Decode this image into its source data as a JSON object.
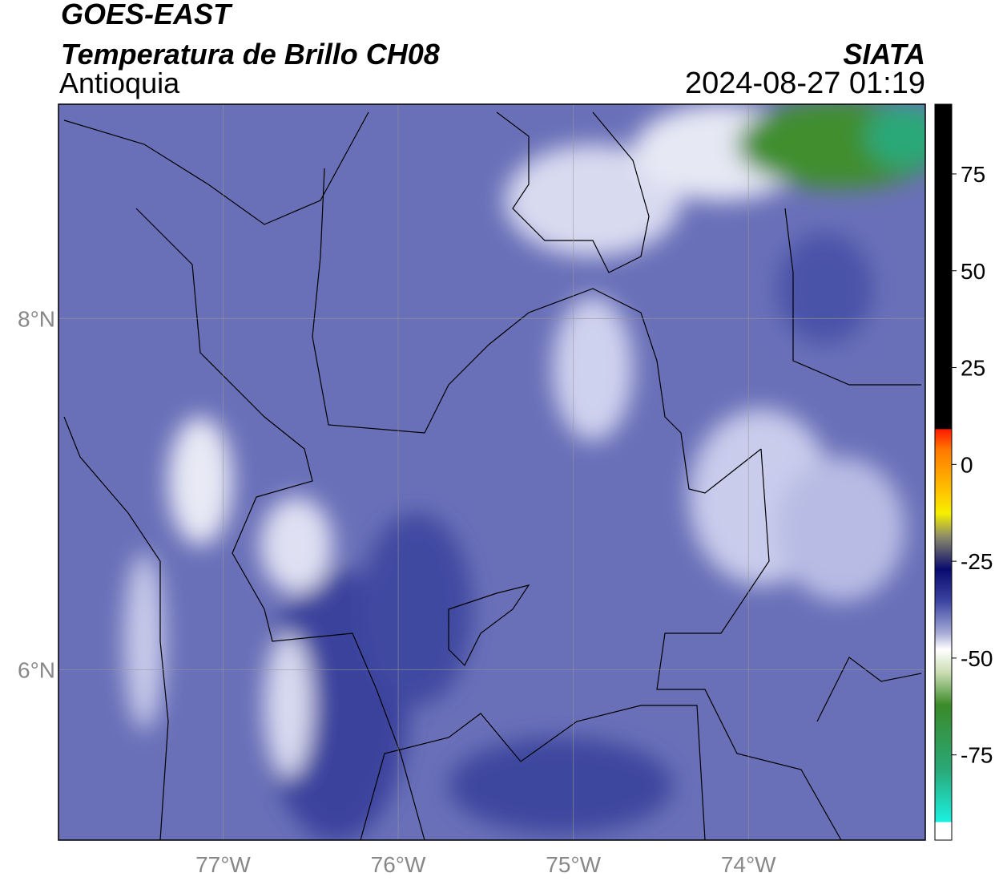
{
  "map": {
    "title_line1": "GOES-EAST",
    "title_line2": "Temperatura de Brillo CH08",
    "subtitle": "Antioquia",
    "source": "SIATA",
    "timestamp": "2024-08-27 01:19",
    "xlim": [
      -77.94,
      -72.99
    ],
    "ylim": [
      5.03,
      9.22
    ],
    "xticks": [
      {
        "value": -77,
        "label": "77°W"
      },
      {
        "value": -76,
        "label": "76°W"
      },
      {
        "value": -75,
        "label": "75°W"
      },
      {
        "value": -74,
        "label": "74°W"
      }
    ],
    "yticks": [
      {
        "value": 6,
        "label": "6°N"
      },
      {
        "value": 8,
        "label": "8°N"
      }
    ],
    "grid": true,
    "colorbar": {
      "lim": [
        -97,
        93
      ],
      "ticks": [
        75,
        50,
        25,
        0,
        -25,
        -50,
        -75
      ]
    }
  }
}
